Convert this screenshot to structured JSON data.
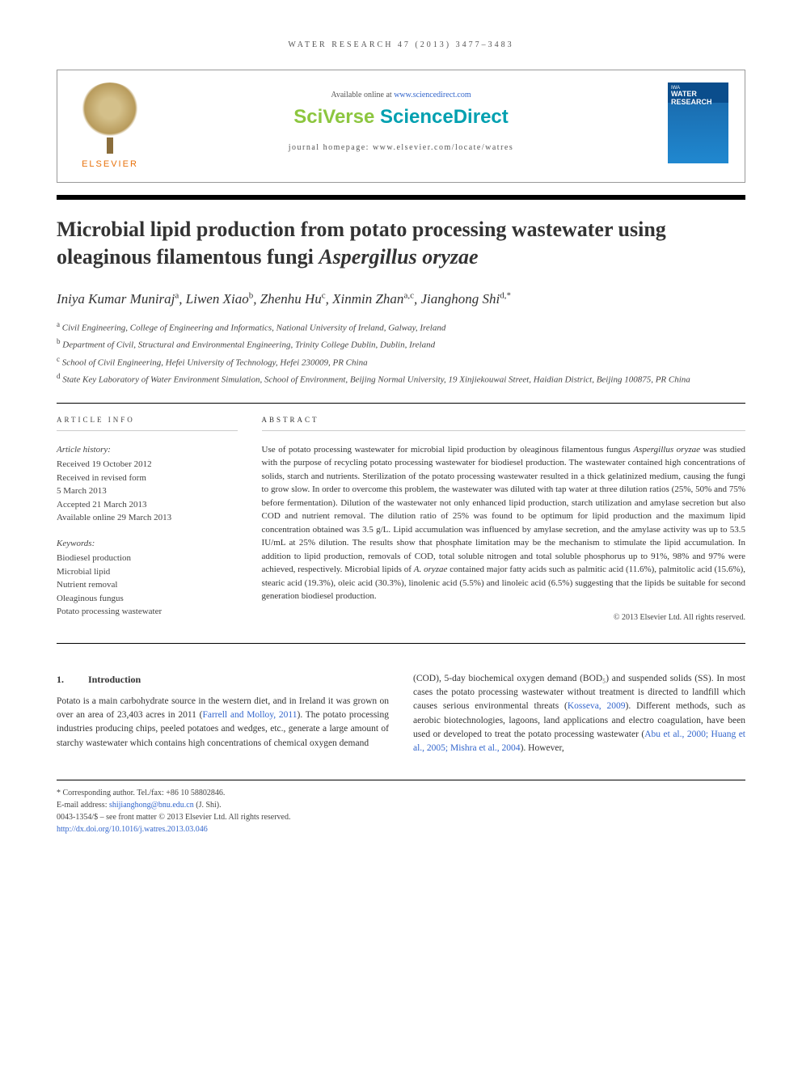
{
  "header": {
    "citation": "WATER RESEARCH 47 (2013) 3477–3483",
    "available_prefix": "Available online at ",
    "available_url": "www.sciencedirect.com",
    "sciverse_sci": "SciVerse ",
    "sciverse_direct": "ScienceDirect",
    "homepage": "journal homepage: www.elsevier.com/locate/watres",
    "publisher": "ELSEVIER",
    "journal_cover_title": "WATER RESEARCH"
  },
  "title_part1": "Microbial lipid production from potato processing wastewater using oleaginous filamentous fungi ",
  "title_species": "Aspergillus oryzae",
  "authors_html": "Iniya Kumar Muniraj",
  "authors": [
    {
      "name": "Iniya Kumar Muniraj",
      "sup": "a"
    },
    {
      "name": "Liwen Xiao",
      "sup": "b"
    },
    {
      "name": "Zhenhu Hu",
      "sup": "c"
    },
    {
      "name": "Xinmin Zhan",
      "sup": "a,c"
    },
    {
      "name": "Jianghong Shi",
      "sup": "d,*"
    }
  ],
  "affiliations": [
    {
      "sup": "a",
      "text": "Civil Engineering, College of Engineering and Informatics, National University of Ireland, Galway, Ireland"
    },
    {
      "sup": "b",
      "text": "Department of Civil, Structural and Environmental Engineering, Trinity College Dublin, Dublin, Ireland"
    },
    {
      "sup": "c",
      "text": "School of Civil Engineering, Hefei University of Technology, Hefei 230009, PR China"
    },
    {
      "sup": "d",
      "text": "State Key Laboratory of Water Environment Simulation, School of Environment, Beijing Normal University, 19 Xinjiekouwai Street, Haidian District, Beijing 100875, PR China"
    }
  ],
  "info": {
    "heading": "ARTICLE INFO",
    "history_label": "Article history:",
    "history": [
      "Received 19 October 2012",
      "Received in revised form",
      "5 March 2013",
      "Accepted 21 March 2013",
      "Available online 29 March 2013"
    ],
    "keywords_label": "Keywords:",
    "keywords": [
      "Biodiesel production",
      "Microbial lipid",
      "Nutrient removal",
      "Oleaginous fungus",
      "Potato processing wastewater"
    ]
  },
  "abstract": {
    "heading": "ABSTRACT",
    "text_pre": "Use of potato processing wastewater for microbial lipid production by oleaginous filamentous fungus ",
    "species1": "Aspergillus oryzae",
    "text_mid": " was studied with the purpose of recycling potato processing wastewater for biodiesel production. The wastewater contained high concentrations of solids, starch and nutrients. Sterilization of the potato processing wastewater resulted in a thick gelatinized medium, causing the fungi to grow slow. In order to overcome this problem, the wastewater was diluted with tap water at three dilution ratios (25%, 50% and 75% before fermentation). Dilution of the wastewater not only enhanced lipid production, starch utilization and amylase secretion but also COD and nutrient removal. The dilution ratio of 25% was found to be optimum for lipid production and the maximum lipid concentration obtained was 3.5 g/L. Lipid accumulation was influenced by amylase secretion, and the amylase activity was up to 53.5 IU/mL at 25% dilution. The results show that phosphate limitation may be the mechanism to stimulate the lipid accumulation. In addition to lipid production, removals of COD, total soluble nitrogen and total soluble phosphorus up to 91%, 98% and 97% were achieved, respectively. Microbial lipids of ",
    "species2": "A. oryzae",
    "text_post": " contained major fatty acids such as palmitic acid (11.6%), palmitolic acid (15.6%), stearic acid (19.3%), oleic acid (30.3%), linolenic acid (5.5%) and linoleic acid (6.5%) suggesting that the lipids be suitable for second generation biodiesel production.",
    "copyright": "© 2013 Elsevier Ltd. All rights reserved."
  },
  "body": {
    "section_num": "1.",
    "section_title": "Introduction",
    "col1_pre": "Potato is a main carbohydrate source in the western diet, and in Ireland it was grown on over an area of 23,403 acres in 2011 (",
    "col1_cite1": "Farrell and Molloy, 2011",
    "col1_post": "). The potato processing industries producing chips, peeled potatoes and wedges, etc., generate a large amount of starchy wastewater which contains high concentrations of chemical oxygen demand",
    "col2_pre": "(COD), 5-day biochemical oxygen demand (BOD₅) and suspended solids (SS). In most cases the potato processing wastewater without treatment is directed to landfill which causes serious environmental threats (",
    "col2_cite1": "Kosseva, 2009",
    "col2_mid": "). Different methods, such as aerobic biotechnologies, lagoons, land applications and electro coagulation, have been used or developed to treat the potato processing wastewater (",
    "col2_cite2": "Abu et al., 2000; Huang et al., 2005; Mishra et al., 2004",
    "col2_post": "). However,"
  },
  "footer": {
    "corr_label": "* Corresponding author. ",
    "corr_info": "Tel./fax: +86 10 58802846.",
    "email_label": "E-mail address: ",
    "email": "shijianghong@bnu.edu.cn",
    "email_name": " (J. Shi).",
    "issn": "0043-1354/$ – see front matter © 2013 Elsevier Ltd. All rights reserved.",
    "doi": "http://dx.doi.org/10.1016/j.watres.2013.03.046"
  }
}
